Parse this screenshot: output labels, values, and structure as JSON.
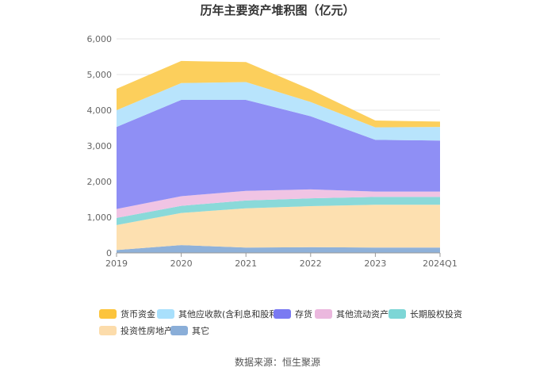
{
  "chart_data": {
    "type": "area",
    "stacked": true,
    "title": "历年主要资产堆积图（亿元）",
    "categories": [
      "2019",
      "2020",
      "2021",
      "2022",
      "2023",
      "2024Q1"
    ],
    "y_ticks": [
      "0",
      "1,000",
      "2,000",
      "3,000",
      "4,000",
      "5,000",
      "6,000"
    ],
    "ylim": [
      0,
      6000
    ],
    "series": [
      {
        "name": "其它",
        "color": "#8fb1d9",
        "values": [
          80,
          220,
          150,
          160,
          150,
          150
        ]
      },
      {
        "name": "投资性房地产",
        "color": "#fde0b0",
        "values": [
          700,
          900,
          1100,
          1150,
          1200,
          1200
        ]
      },
      {
        "name": "长期股权投资",
        "color": "#8ad9d9",
        "values": [
          200,
          200,
          220,
          220,
          220,
          220
        ]
      },
      {
        "name": "其他流动资产",
        "color": "#f0c4e4",
        "values": [
          250,
          270,
          270,
          250,
          150,
          150
        ]
      },
      {
        "name": "存货",
        "color": "#8f8ff5",
        "values": [
          2300,
          2700,
          2550,
          2050,
          1450,
          1430
        ]
      },
      {
        "name": "其他应收款(含利息和股利)",
        "color": "#b8e4fc",
        "values": [
          470,
          470,
          500,
          400,
          350,
          380
        ]
      },
      {
        "name": "货币资金",
        "color": "#fccf5c",
        "values": [
          600,
          620,
          560,
          350,
          190,
          150
        ]
      }
    ]
  },
  "legend": [
    {
      "label": "货币资金",
      "color": "#fcc43c"
    },
    {
      "label": "其他应收款(含利息和股利)",
      "color": "#a9e0fc"
    },
    {
      "label": "存货",
      "color": "#7a7af2"
    },
    {
      "label": "其他流动资产",
      "color": "#ebb8de"
    },
    {
      "label": "长期股权投资",
      "color": "#7dd6d6"
    },
    {
      "label": "投资性房地产",
      "color": "#fcdcab"
    },
    {
      "label": "其它",
      "color": "#8aaed8"
    }
  ],
  "source": "数据来源：恒生聚源"
}
